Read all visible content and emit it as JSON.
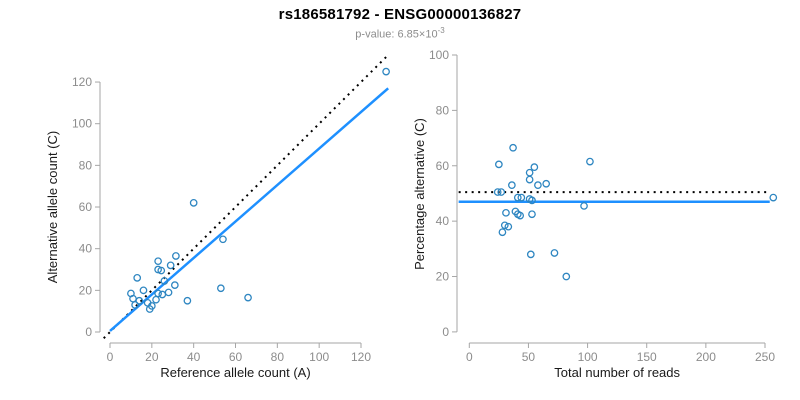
{
  "header": {
    "title": "rs186581792 - ENSG00000136827",
    "subtitle_prefix": "p-value: 6.85×10",
    "subtitle_exponent": "-3"
  },
  "colors": {
    "point": "#2e86c1",
    "fit_line": "#1e90ff",
    "reference_line": "#000000",
    "axis": "#a6a6a6",
    "tick_label": "#8c8c8c",
    "axis_title": "#1a1a1a",
    "subtitle": "#8c8c8c"
  },
  "chart_data": [
    {
      "id": "allele-counts",
      "type": "scatter",
      "title": "",
      "xlabel": "Reference allele count (A)",
      "ylabel": "Alternative allele count (C)",
      "xticks": [
        0,
        20,
        40,
        60,
        80,
        100,
        120
      ],
      "yticks": [
        0,
        20,
        40,
        60,
        80,
        100,
        120
      ],
      "xlim": [
        -5,
        137
      ],
      "ylim": [
        -5,
        137
      ],
      "grid": false,
      "legend": null,
      "lines": [
        {
          "name": "identity-line",
          "style": "dotted",
          "color": "#000000",
          "x1": -3,
          "y1": -3,
          "x2": 133,
          "y2": 133
        },
        {
          "name": "regression-line",
          "style": "solid",
          "color": "#1e90ff",
          "x1": 0,
          "y1": 0.5,
          "x2": 133,
          "y2": 117
        }
      ],
      "points": [
        [
          132,
          125
        ],
        [
          40,
          62
        ],
        [
          54,
          44.5
        ],
        [
          53,
          21
        ],
        [
          66,
          16.5
        ],
        [
          37,
          15
        ],
        [
          31.5,
          36.5
        ],
        [
          23,
          34
        ],
        [
          29,
          32
        ],
        [
          23,
          30
        ],
        [
          24.5,
          29.5
        ],
        [
          13,
          26
        ],
        [
          26,
          24.5
        ],
        [
          31,
          22.5
        ],
        [
          16,
          20
        ],
        [
          10,
          18.5
        ],
        [
          23,
          18.5
        ],
        [
          25,
          18
        ],
        [
          28,
          19
        ],
        [
          14,
          15
        ],
        [
          11,
          16
        ],
        [
          22,
          15.5
        ],
        [
          18,
          14
        ],
        [
          12,
          13
        ],
        [
          19,
          11
        ],
        [
          20,
          12.5
        ]
      ]
    },
    {
      "id": "percentage-reads",
      "type": "scatter",
      "title": "",
      "xlabel": "Total number of reads",
      "ylabel": "Percentage alternative (C)",
      "xticks": [
        0,
        50,
        100,
        150,
        200,
        250
      ],
      "yticks": [
        0,
        20,
        40,
        60,
        80,
        100
      ],
      "xlim": [
        -10,
        266
      ],
      "ylim": [
        -4,
        104
      ],
      "grid": false,
      "legend": null,
      "lines": [
        {
          "name": "null-percentage-line",
          "style": "dotted",
          "color": "#000000",
          "y": 50.5,
          "x1": -9,
          "x2": 254
        },
        {
          "name": "mean-percentage-line",
          "style": "solid",
          "color": "#1e90ff",
          "y": 47,
          "x1": -9,
          "x2": 254
        }
      ],
      "points": [
        [
          25,
          60.5
        ],
        [
          37,
          66.5
        ],
        [
          55,
          59.5
        ],
        [
          51,
          57.5
        ],
        [
          51,
          55
        ],
        [
          36,
          53
        ],
        [
          58,
          53
        ],
        [
          65,
          53.5
        ],
        [
          24,
          50.5
        ],
        [
          27,
          50.5
        ],
        [
          41,
          48.5
        ],
        [
          44,
          48.5
        ],
        [
          51,
          48
        ],
        [
          53,
          47.5
        ],
        [
          31,
          43
        ],
        [
          39,
          43.5
        ],
        [
          41,
          42.5
        ],
        [
          43,
          42
        ],
        [
          53,
          42.5
        ],
        [
          28,
          36
        ],
        [
          30,
          38.5
        ],
        [
          33,
          38
        ],
        [
          52,
          28
        ],
        [
          72,
          28.5
        ],
        [
          82,
          20
        ],
        [
          97,
          45.5
        ],
        [
          102,
          61.5
        ],
        [
          257,
          48.5
        ]
      ]
    }
  ]
}
